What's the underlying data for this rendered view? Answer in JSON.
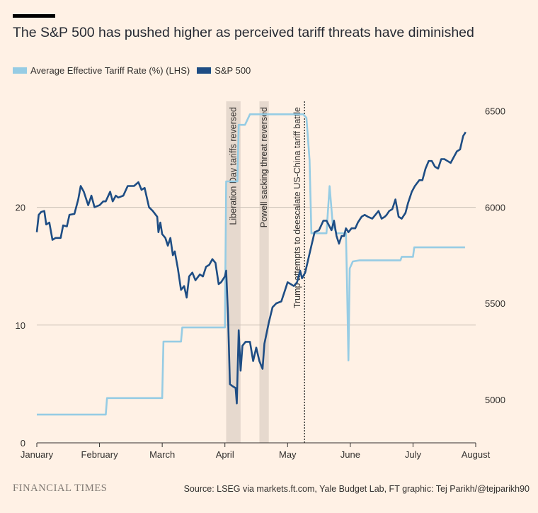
{
  "title": "The S&P 500 has pushed higher as perceived tariff threats have diminished",
  "colors": {
    "background": "#fff1e5",
    "tariff": "#96cce4",
    "sp500": "#1e4d84",
    "shade": "#e6d9ce",
    "grid": "#ccc1b7",
    "axis": "#33302e"
  },
  "footer": {
    "brand": "FINANCIAL TIMES",
    "source": "Source: LSEG via markets.ft.com, Yale Budget Lab, FT graphic: Tej Parikh/@tejparikh90"
  },
  "chart_data": {
    "type": "line",
    "x_unit": "month (0 = 1 January, 7 = 1 August)",
    "x_ticks": [
      {
        "label": "January",
        "x": 0
      },
      {
        "label": "February",
        "x": 1
      },
      {
        "label": "March",
        "x": 2
      },
      {
        "label": "April",
        "x": 3
      },
      {
        "label": "May",
        "x": 4
      },
      {
        "label": "June",
        "x": 5
      },
      {
        "label": "July",
        "x": 6
      },
      {
        "label": "August",
        "x": 7
      }
    ],
    "left_axis": {
      "label": "Average Effective Tariff Rate (%)",
      "ylim": [
        0,
        29
      ],
      "ticks": [
        {
          "label": "0",
          "v": 0
        },
        {
          "label": "10",
          "v": 10
        },
        {
          "label": "20",
          "v": 20
        }
      ]
    },
    "right_axis": {
      "label": "S&P 500",
      "ylim": [
        4775,
        6550
      ],
      "ticks": [
        {
          "label": "5000",
          "v": 5000
        },
        {
          "label": "5500",
          "v": 5500
        },
        {
          "label": "6000",
          "v": 6000
        },
        {
          "label": "6500",
          "v": 6500
        }
      ]
    },
    "legend": [
      "Average Effective Tariff Rate (%) (LHS)",
      "S&P 500"
    ],
    "series": [
      {
        "name": "Average Effective Tariff Rate (%) (LHS)",
        "axis": "left",
        "points": [
          [
            0.0,
            2.4
          ],
          [
            1.1,
            2.4
          ],
          [
            1.12,
            3.8
          ],
          [
            2.0,
            3.8
          ],
          [
            2.02,
            8.6
          ],
          [
            2.3,
            8.6
          ],
          [
            2.32,
            9.8
          ],
          [
            3.0,
            9.8
          ],
          [
            3.02,
            22.2
          ],
          [
            3.2,
            22.2
          ],
          [
            3.22,
            27.0
          ],
          [
            3.32,
            27.0
          ],
          [
            3.4,
            27.9
          ],
          [
            4.25,
            27.9
          ],
          [
            4.3,
            27.6
          ],
          [
            4.35,
            24.0
          ],
          [
            4.38,
            17.8
          ],
          [
            4.62,
            17.8
          ],
          [
            4.67,
            21.8
          ],
          [
            4.72,
            18.5
          ],
          [
            4.78,
            17.8
          ],
          [
            4.93,
            17.8
          ],
          [
            4.95,
            13.0
          ],
          [
            4.97,
            7.0
          ],
          [
            4.99,
            14.8
          ],
          [
            5.04,
            15.4
          ],
          [
            5.15,
            15.5
          ],
          [
            5.8,
            15.5
          ],
          [
            5.82,
            15.8
          ],
          [
            6.0,
            15.8
          ],
          [
            6.02,
            16.6
          ],
          [
            6.83,
            16.6
          ]
        ]
      },
      {
        "name": "S&P 500",
        "axis": "right",
        "points": [
          [
            0.0,
            5870
          ],
          [
            0.03,
            5960
          ],
          [
            0.07,
            5975
          ],
          [
            0.12,
            5980
          ],
          [
            0.15,
            5910
          ],
          [
            0.2,
            5920
          ],
          [
            0.25,
            5830
          ],
          [
            0.3,
            5840
          ],
          [
            0.38,
            5840
          ],
          [
            0.42,
            5905
          ],
          [
            0.48,
            5900
          ],
          [
            0.52,
            5960
          ],
          [
            0.6,
            5965
          ],
          [
            0.66,
            6040
          ],
          [
            0.7,
            6110
          ],
          [
            0.75,
            6080
          ],
          [
            0.82,
            6010
          ],
          [
            0.87,
            6060
          ],
          [
            0.92,
            6000
          ],
          [
            1.0,
            6010
          ],
          [
            1.06,
            6030
          ],
          [
            1.1,
            6030
          ],
          [
            1.17,
            6080
          ],
          [
            1.21,
            6030
          ],
          [
            1.26,
            6060
          ],
          [
            1.3,
            6050
          ],
          [
            1.38,
            6060
          ],
          [
            1.45,
            6110
          ],
          [
            1.55,
            6110
          ],
          [
            1.62,
            6130
          ],
          [
            1.67,
            6090
          ],
          [
            1.72,
            6100
          ],
          [
            1.79,
            6000
          ],
          [
            1.85,
            5980
          ],
          [
            1.92,
            5950
          ],
          [
            1.94,
            5870
          ],
          [
            1.97,
            5920
          ],
          [
            2.0,
            5860
          ],
          [
            2.05,
            5840
          ],
          [
            2.09,
            5800
          ],
          [
            2.13,
            5840
          ],
          [
            2.17,
            5750
          ],
          [
            2.2,
            5770
          ],
          [
            2.25,
            5680
          ],
          [
            2.3,
            5570
          ],
          [
            2.35,
            5590
          ],
          [
            2.39,
            5530
          ],
          [
            2.43,
            5640
          ],
          [
            2.48,
            5660
          ],
          [
            2.53,
            5620
          ],
          [
            2.6,
            5650
          ],
          [
            2.65,
            5640
          ],
          [
            2.7,
            5690
          ],
          [
            2.75,
            5700
          ],
          [
            2.8,
            5730
          ],
          [
            2.85,
            5710
          ],
          [
            2.9,
            5600
          ],
          [
            2.94,
            5610
          ],
          [
            3.0,
            5640
          ],
          [
            3.02,
            5670
          ],
          [
            3.05,
            5440
          ],
          [
            3.08,
            5080
          ],
          [
            3.12,
            5070
          ],
          [
            3.17,
            5060
          ],
          [
            3.19,
            4980
          ],
          [
            3.22,
            5360
          ],
          [
            3.25,
            5150
          ],
          [
            3.28,
            5280
          ],
          [
            3.33,
            5300
          ],
          [
            3.4,
            5300
          ],
          [
            3.45,
            5200
          ],
          [
            3.5,
            5270
          ],
          [
            3.55,
            5200
          ],
          [
            3.6,
            5160
          ],
          [
            3.63,
            5290
          ],
          [
            3.7,
            5400
          ],
          [
            3.76,
            5480
          ],
          [
            3.82,
            5500
          ],
          [
            3.9,
            5510
          ],
          [
            3.95,
            5560
          ],
          [
            4.0,
            5610
          ],
          [
            4.05,
            5600
          ],
          [
            4.1,
            5590
          ],
          [
            4.15,
            5610
          ],
          [
            4.2,
            5670
          ],
          [
            4.23,
            5630
          ],
          [
            4.28,
            5660
          ],
          [
            4.33,
            5730
          ],
          [
            4.38,
            5800
          ],
          [
            4.43,
            5870
          ],
          [
            4.5,
            5880
          ],
          [
            4.57,
            5930
          ],
          [
            4.62,
            5930
          ],
          [
            4.7,
            5880
          ],
          [
            4.74,
            5930
          ],
          [
            4.78,
            5850
          ],
          [
            4.82,
            5810
          ],
          [
            4.86,
            5850
          ],
          [
            4.9,
            5850
          ],
          [
            4.93,
            5890
          ],
          [
            4.97,
            5870
          ],
          [
            5.02,
            5890
          ],
          [
            5.08,
            5890
          ],
          [
            5.12,
            5920
          ],
          [
            5.18,
            5950
          ],
          [
            5.23,
            5960
          ],
          [
            5.28,
            5950
          ],
          [
            5.35,
            5940
          ],
          [
            5.4,
            5960
          ],
          [
            5.45,
            5980
          ],
          [
            5.5,
            5940
          ],
          [
            5.55,
            5950
          ],
          [
            5.58,
            5960
          ],
          [
            5.62,
            5980
          ],
          [
            5.67,
            5990
          ],
          [
            5.72,
            6040
          ],
          [
            5.77,
            5950
          ],
          [
            5.82,
            5940
          ],
          [
            5.88,
            5970
          ],
          [
            5.92,
            6020
          ],
          [
            5.95,
            6050
          ],
          [
            5.98,
            6080
          ],
          [
            6.03,
            6110
          ],
          [
            6.1,
            6140
          ],
          [
            6.15,
            6140
          ],
          [
            6.2,
            6200
          ],
          [
            6.25,
            6240
          ],
          [
            6.3,
            6240
          ],
          [
            6.35,
            6210
          ],
          [
            6.4,
            6200
          ],
          [
            6.45,
            6250
          ],
          [
            6.5,
            6250
          ],
          [
            6.55,
            6240
          ],
          [
            6.6,
            6230
          ],
          [
            6.65,
            6260
          ],
          [
            6.7,
            6290
          ],
          [
            6.75,
            6300
          ],
          [
            6.8,
            6370
          ],
          [
            6.84,
            6390
          ]
        ]
      }
    ],
    "shaded_bands": [
      {
        "label": "Liberation Day tariffs reversed",
        "x_start": 3.02,
        "x_end": 3.25
      },
      {
        "label": "Powell sacking threat reversed",
        "x_start": 3.55,
        "x_end": 3.7
      }
    ],
    "annotations": [
      {
        "label": "Trump attempts to deescalate US-China tariff battle",
        "x": 4.27,
        "style": "dotted-line"
      }
    ]
  }
}
